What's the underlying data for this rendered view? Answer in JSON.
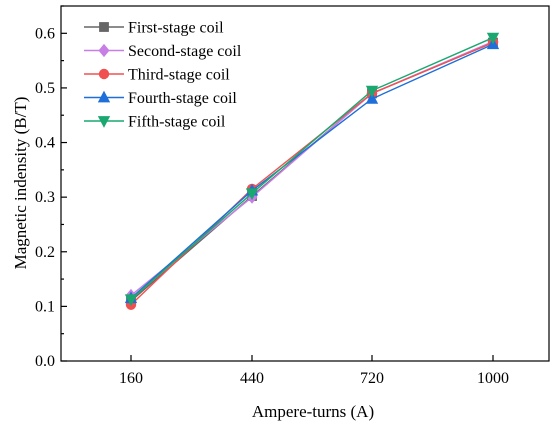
{
  "chart_data": {
    "type": "line",
    "title": "",
    "xlabel": "Ampere-turns (A)",
    "ylabel": "Magnetic indensity (B/T)",
    "categories": [
      "160",
      "440",
      "720",
      "1000"
    ],
    "ylim": [
      0.0,
      0.65
    ],
    "yticks": [
      "0.0",
      "0.1",
      "0.2",
      "0.3",
      "0.4",
      "0.5",
      "0.6"
    ],
    "grid": false,
    "legend_position": "top-left",
    "series": [
      {
        "name": "First-stage coil",
        "color": "#666666",
        "marker": "square",
        "values": [
          0.11,
          0.302,
          0.49,
          0.583
        ]
      },
      {
        "name": "Second-stage coil",
        "color": "#c77fe6",
        "marker": "diamond",
        "values": [
          0.12,
          0.3,
          0.49,
          0.585
        ]
      },
      {
        "name": "Third-stage coil",
        "color": "#f05050",
        "marker": "circle",
        "values": [
          0.103,
          0.315,
          0.49,
          0.583
        ]
      },
      {
        "name": "Fourth-stage coil",
        "color": "#1e6fd9",
        "marker": "triangle-up",
        "values": [
          0.115,
          0.312,
          0.48,
          0.58
        ]
      },
      {
        "name": "Fifth-stage coil",
        "color": "#1aa870",
        "marker": "triangle-down",
        "values": [
          0.113,
          0.307,
          0.495,
          0.592
        ]
      }
    ]
  }
}
